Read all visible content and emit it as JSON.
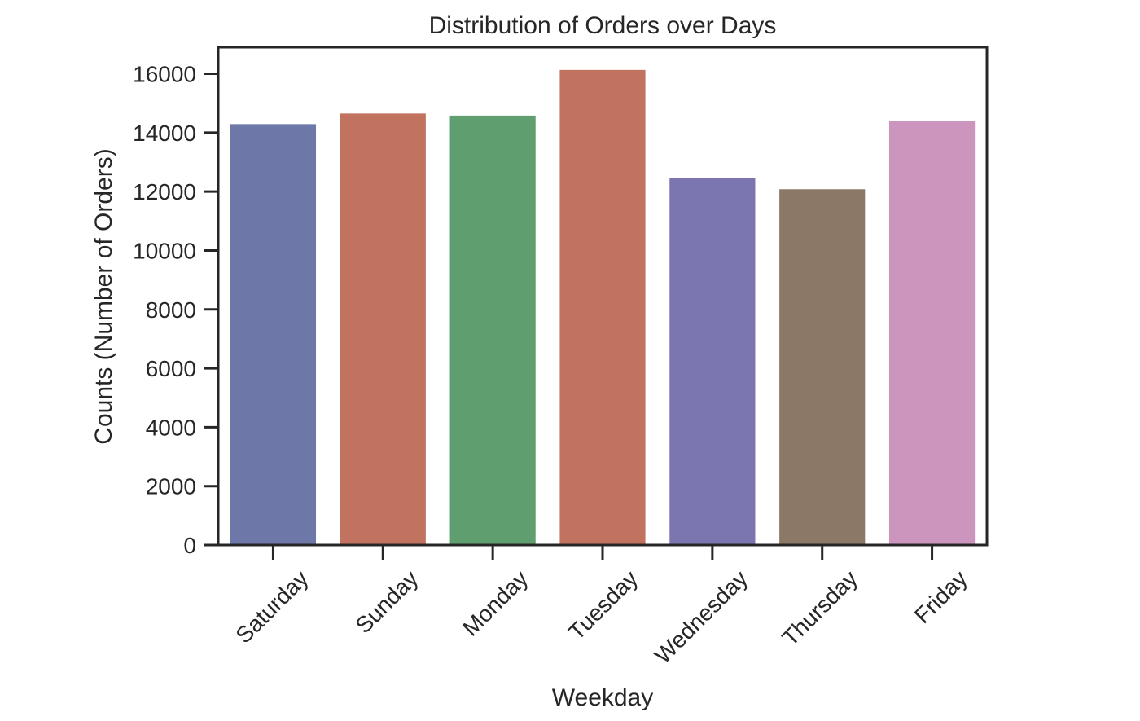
{
  "chart_data": {
    "type": "bar",
    "title": "Distribution of Orders over Days",
    "xlabel": "Weekday",
    "ylabel": "Counts (Number of Orders)",
    "categories": [
      "Saturday",
      "Sunday",
      "Monday",
      "Tuesday",
      "Wednesday",
      "Thursday",
      "Friday"
    ],
    "values": [
      14290,
      14650,
      14580,
      16130,
      12450,
      12080,
      14390
    ],
    "colors": [
      "#6e78a8",
      "#c27360",
      "#5f9e6e",
      "#c27360",
      "#7c76b0",
      "#8b7866",
      "#cc95be"
    ],
    "ylim": [
      0,
      16900
    ],
    "yticks": [
      0,
      2000,
      4000,
      6000,
      8000,
      10000,
      12000,
      14000,
      16000
    ],
    "grid": false,
    "legend": "none"
  }
}
